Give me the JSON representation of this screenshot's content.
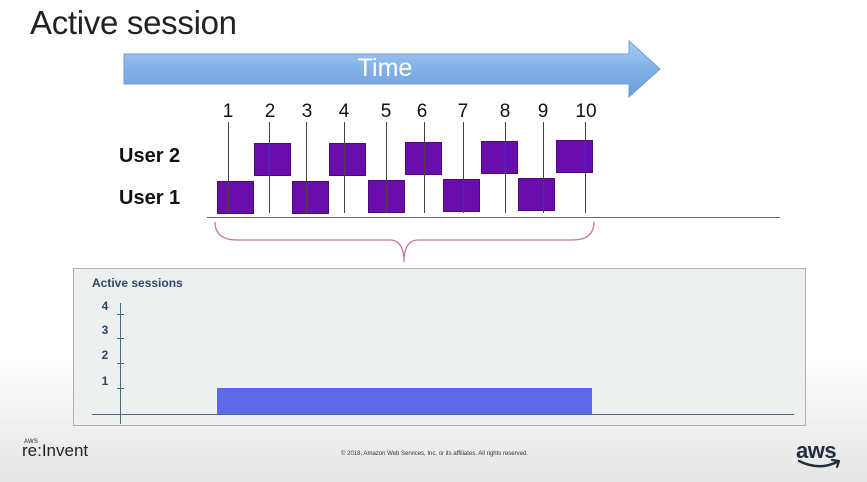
{
  "slide": {
    "title": "Active session",
    "time_label": "Time"
  },
  "timeline": {
    "ticks": [
      "1",
      "2",
      "3",
      "4",
      "5",
      "6",
      "7",
      "8",
      "9",
      "10"
    ],
    "users": [
      {
        "label": "User 2"
      },
      {
        "label": "User 1"
      }
    ]
  },
  "chart": {
    "title": "Active sessions",
    "y_tick_labels": [
      "4",
      "3",
      "2",
      "1"
    ]
  },
  "chart_data": {
    "type": "bar",
    "title": "Active sessions",
    "ylim": [
      0,
      4
    ],
    "yticks": [
      1,
      2,
      3,
      4
    ],
    "series": [
      {
        "x_start_tick": 1,
        "x_end_tick": 10,
        "value": 1
      }
    ]
  },
  "footer": {
    "brand_small": "AWS",
    "brand": "re:Invent",
    "copyright": "© 2018, Amazon Web Services, Inc. or its affiliates. All rights reserved.",
    "logo": "aws"
  },
  "colors": {
    "arrow": "#7fb0e6",
    "session": "#6a0dad",
    "bar": "#6068ea",
    "brace": "#c8709c",
    "axis_text": "#294a66"
  }
}
